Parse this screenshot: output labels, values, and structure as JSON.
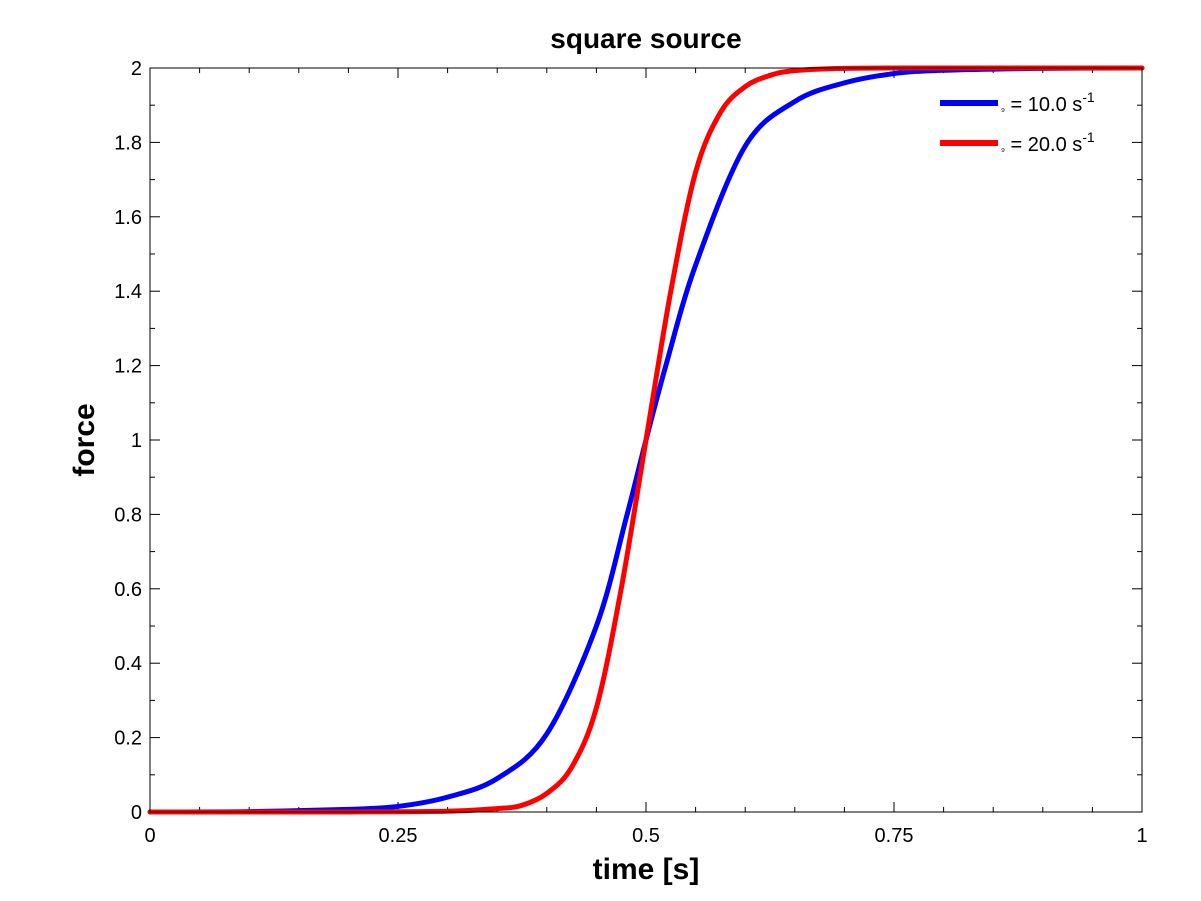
{
  "chart_data": {
    "type": "line",
    "title": "square source",
    "xlabel": "time [s]",
    "ylabel": "force",
    "xlim": [
      0,
      1
    ],
    "ylim": [
      0,
      2
    ],
    "xticks": [
      0,
      0.25,
      0.5,
      0.75,
      1
    ],
    "xtick_labels": [
      "0",
      "0.25",
      "0.5",
      "0.75",
      "1"
    ],
    "yticks": [
      0,
      0.2,
      0.4,
      0.6,
      0.8,
      1,
      1.2,
      1.4,
      1.6,
      1.8,
      2
    ],
    "ytick_labels": [
      "0",
      "0.2",
      "0.4",
      "0.6",
      "0.8",
      "1",
      "1.2",
      "1.4",
      "1.6",
      "1.8",
      "2"
    ],
    "grid": false,
    "legend_position": "top-right",
    "series": [
      {
        "label_symbol": "₉",
        "label_text": " = 10.0 s",
        "label_sup": "-1",
        "color": "#0000ff",
        "x": [
          0,
          0.1,
          0.2,
          0.25,
          0.3,
          0.35,
          0.4,
          0.45,
          0.48,
          0.5,
          0.52,
          0.55,
          0.6,
          0.65,
          0.7,
          0.75,
          0.8,
          0.9,
          1.0
        ],
        "y": [
          0.0001,
          0.001,
          0.007,
          0.015,
          0.04,
          0.09,
          0.21,
          0.5,
          0.79,
          1.0,
          1.2,
          1.47,
          1.79,
          1.91,
          1.96,
          1.985,
          1.994,
          1.999,
          2.0
        ]
      },
      {
        "label_symbol": "₉",
        "label_text": " = 20.0 s",
        "label_sup": "-1",
        "color": "#ff0000",
        "x": [
          0,
          0.1,
          0.2,
          0.3,
          0.35,
          0.375,
          0.4,
          0.425,
          0.45,
          0.475,
          0.5,
          0.525,
          0.55,
          0.575,
          0.6,
          0.625,
          0.65,
          0.7,
          0.8,
          0.9,
          1.0
        ],
        "y": [
          0.0,
          0.0,
          0.0001,
          0.002,
          0.009,
          0.018,
          0.05,
          0.12,
          0.28,
          0.6,
          1.0,
          1.4,
          1.72,
          1.88,
          1.95,
          1.98,
          1.993,
          1.999,
          2.0,
          2.0,
          2.0
        ]
      }
    ]
  }
}
